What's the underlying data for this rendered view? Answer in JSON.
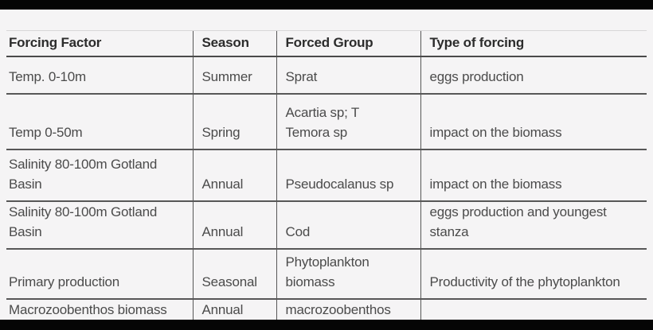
{
  "table": {
    "columns": [
      "Forcing Factor",
      "Season",
      "Forced Group",
      "Type of forcing"
    ],
    "rows": [
      {
        "forcing_factor": "Temp. 0-10m",
        "season": "Summer",
        "forced_group": "Sprat",
        "type_of_forcing": "eggs production"
      },
      {
        "forcing_factor": "Temp 0-50m",
        "season": "Spring",
        "forced_group": "Acartia sp; T\nTemora sp",
        "type_of_forcing": "impact on the biomass"
      },
      {
        "forcing_factor": "Salinity 80-100m Gotland\nBasin",
        "season": "Annual",
        "forced_group": "Pseudocalanus sp",
        "type_of_forcing": "impact on the biomass"
      },
      {
        "forcing_factor": "Salinity 80-100m Gotland\nBasin",
        "season": "Annual",
        "forced_group": "Cod",
        "type_of_forcing": "eggs production and youngest\nstanza"
      },
      {
        "forcing_factor": "Primary production",
        "season": "Seasonal",
        "forced_group": "Phytoplankton\nbiomass",
        "type_of_forcing": "Productivity of the phytoplankton"
      },
      {
        "forcing_factor": "Macrozoobenthos biomass",
        "season": "Annual",
        "forced_group": "macrozoobenthos",
        "type_of_forcing": ""
      }
    ]
  },
  "colors": {
    "background": "#f5f4f5",
    "rule": "#575757",
    "header_text": "#2c2c2c",
    "body_text": "#4b4b4b",
    "letterbox": "#050505"
  }
}
